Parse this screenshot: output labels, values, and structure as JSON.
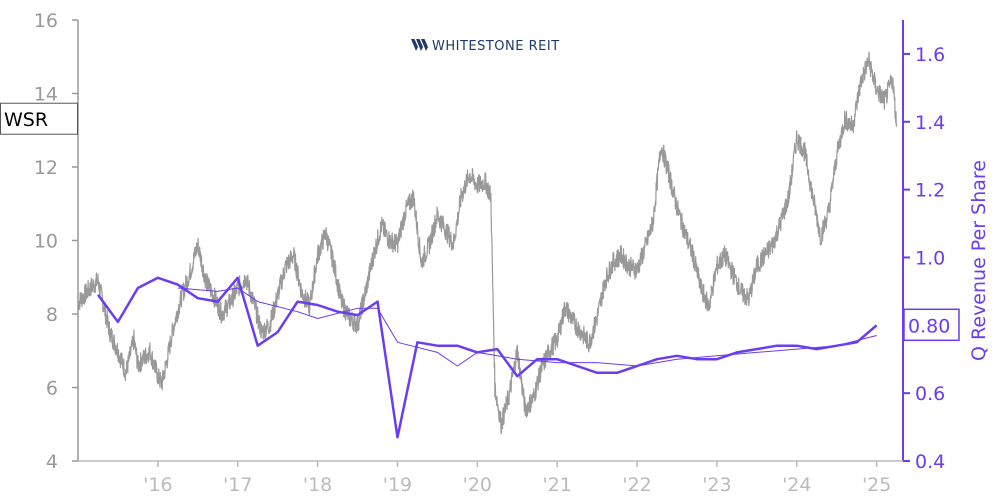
{
  "chart_data": {
    "type": "line",
    "logo": {
      "brand": "WHITESTONE REIT",
      "icon": "whitestone-w-logo-icon",
      "color": "#1f3a68"
    },
    "x_axis": {
      "range": [
        2015.0,
        2025.33
      ],
      "ticks": [
        {
          "x": 2016,
          "label": "'16"
        },
        {
          "x": 2017,
          "label": "'17"
        },
        {
          "x": 2018,
          "label": "'18"
        },
        {
          "x": 2019,
          "label": "'19"
        },
        {
          "x": 2020,
          "label": "'20"
        },
        {
          "x": 2021,
          "label": "'21"
        },
        {
          "x": 2022,
          "label": "'22"
        },
        {
          "x": 2023,
          "label": "'23"
        },
        {
          "x": 2024,
          "label": "'24"
        },
        {
          "x": 2025,
          "label": "'25"
        }
      ],
      "color": "#bbbbbb"
    },
    "y_left": {
      "range": [
        4,
        16
      ],
      "ticks": [
        4,
        6,
        8,
        10,
        12,
        14,
        16
      ],
      "color": "#999999",
      "tag": "WSR",
      "tag_value": 13.3
    },
    "y_right": {
      "label": "Q Revenue Per Share",
      "range": [
        0.4,
        1.7
      ],
      "ticks": [
        {
          "v": 0.4,
          "label": "0.4"
        },
        {
          "v": 0.6,
          "label": "0.6"
        },
        {
          "v": 0.8,
          "label": "0.8"
        },
        {
          "v": 1.0,
          "label": "1.0"
        },
        {
          "v": 1.2,
          "label": "1.2"
        },
        {
          "v": 1.4,
          "label": "1.4"
        },
        {
          "v": 1.6,
          "label": "1.6"
        }
      ],
      "color": "#6a3df0",
      "tag": "0.80",
      "tag_value": 0.8
    },
    "series": [
      {
        "role": "stock-price",
        "axis": "left",
        "color": "#999999",
        "x": [
          2015.0,
          2015.15,
          2015.25,
          2015.4,
          2015.5,
          2015.6,
          2015.7,
          2015.75,
          2015.9,
          2016.0,
          2016.05,
          2016.12,
          2016.2,
          2016.3,
          2016.4,
          2016.5,
          2016.6,
          2016.7,
          2016.8,
          2016.9,
          2017.0,
          2017.1,
          2017.2,
          2017.3,
          2017.4,
          2017.5,
          2017.6,
          2017.7,
          2017.8,
          2017.9,
          2018.0,
          2018.1,
          2018.2,
          2018.3,
          2018.4,
          2018.5,
          2018.6,
          2018.7,
          2018.8,
          2018.9,
          2019.0,
          2019.1,
          2019.2,
          2019.3,
          2019.4,
          2019.5,
          2019.6,
          2019.7,
          2019.8,
          2019.9,
          2020.0,
          2020.1,
          2020.17,
          2020.22,
          2020.3,
          2020.4,
          2020.5,
          2020.6,
          2020.7,
          2020.8,
          2020.9,
          2021.0,
          2021.1,
          2021.2,
          2021.3,
          2021.4,
          2021.5,
          2021.6,
          2021.7,
          2021.8,
          2021.9,
          2022.0,
          2022.1,
          2022.2,
          2022.3,
          2022.4,
          2022.5,
          2022.6,
          2022.7,
          2022.8,
          2022.9,
          2023.0,
          2023.1,
          2023.2,
          2023.3,
          2023.4,
          2023.5,
          2023.6,
          2023.7,
          2023.8,
          2023.9,
          2024.0,
          2024.1,
          2024.2,
          2024.3,
          2024.4,
          2024.5,
          2024.6,
          2024.7,
          2024.8,
          2024.9,
          2025.0,
          2025.1,
          2025.2,
          2025.25
        ],
        "y": [
          8.3,
          8.7,
          8.9,
          7.5,
          7.0,
          6.4,
          7.3,
          6.6,
          7.0,
          6.3,
          6.1,
          6.8,
          7.7,
          8.5,
          9.1,
          9.9,
          8.9,
          8.5,
          8.0,
          8.3,
          8.7,
          9.0,
          8.3,
          7.5,
          7.7,
          8.5,
          9.3,
          9.6,
          8.6,
          8.2,
          9.6,
          10.2,
          9.4,
          8.3,
          7.9,
          7.7,
          8.6,
          9.6,
          10.4,
          10.0,
          9.9,
          10.8,
          11.2,
          9.4,
          9.9,
          10.7,
          10.3,
          9.9,
          11.2,
          11.8,
          11.5,
          11.6,
          11.2,
          6.0,
          5.0,
          5.8,
          7.0,
          5.4,
          5.7,
          6.5,
          7.0,
          7.3,
          8.2,
          7.8,
          7.5,
          7.2,
          7.9,
          8.9,
          9.4,
          9.6,
          9.3,
          9.2,
          9.8,
          10.5,
          12.6,
          11.8,
          10.9,
          10.2,
          9.6,
          8.7,
          8.2,
          9.3,
          9.6,
          9.1,
          8.6,
          8.4,
          9.3,
          9.6,
          9.9,
          10.5,
          11.2,
          12.8,
          12.4,
          11.2,
          10.1,
          10.8,
          12.3,
          13.3,
          13.1,
          14.3,
          14.9,
          14.1,
          13.8,
          14.4,
          13.1
        ]
      },
      {
        "role": "q-revenue-per-share",
        "axis": "right",
        "color": "#6a3df0",
        "width": 2.5,
        "x": [
          2015.25,
          2015.5,
          2015.75,
          2016.0,
          2016.25,
          2016.5,
          2016.75,
          2017.0,
          2017.25,
          2017.5,
          2017.75,
          2018.0,
          2018.25,
          2018.5,
          2018.75,
          2019.0,
          2019.25,
          2019.5,
          2019.75,
          2020.0,
          2020.25,
          2020.5,
          2020.75,
          2021.0,
          2021.25,
          2021.5,
          2021.75,
          2022.0,
          2022.25,
          2022.5,
          2022.75,
          2023.0,
          2023.25,
          2023.5,
          2023.75,
          2024.0,
          2024.25,
          2024.5,
          2024.75,
          2025.0
        ],
        "y": [
          0.89,
          0.81,
          0.91,
          0.94,
          0.92,
          0.88,
          0.87,
          0.94,
          0.74,
          0.78,
          0.87,
          0.86,
          0.84,
          0.83,
          0.87,
          0.47,
          0.75,
          0.74,
          0.74,
          0.72,
          0.73,
          0.65,
          0.7,
          0.7,
          0.68,
          0.66,
          0.66,
          0.68,
          0.7,
          0.71,
          0.7,
          0.7,
          0.72,
          0.73,
          0.74,
          0.74,
          0.73,
          0.74,
          0.75,
          0.8
        ]
      },
      {
        "role": "q-revenue-per-share-trend",
        "axis": "right",
        "color": "#6a3df0",
        "width": 1,
        "x": [
          2016.25,
          2016.75,
          2017.0,
          2017.25,
          2017.75,
          2018.0,
          2018.5,
          2018.75,
          2019.0,
          2019.5,
          2019.75,
          2020.0,
          2020.5,
          2021.0,
          2021.5,
          2022.0,
          2022.5,
          2023.0,
          2023.5,
          2024.0,
          2024.5,
          2025.0
        ],
        "y": [
          0.91,
          0.9,
          0.91,
          0.87,
          0.84,
          0.82,
          0.85,
          0.85,
          0.75,
          0.72,
          0.68,
          0.72,
          0.7,
          0.69,
          0.69,
          0.68,
          0.7,
          0.71,
          0.72,
          0.73,
          0.74,
          0.77
        ]
      }
    ]
  }
}
